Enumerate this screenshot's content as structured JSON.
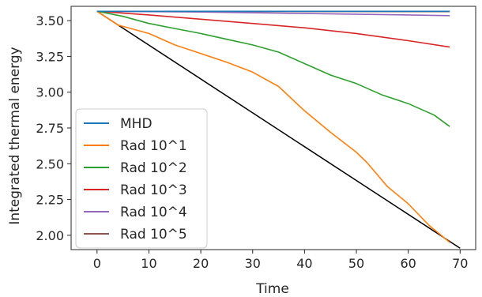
{
  "chart_data": {
    "type": "line",
    "xlabel": "Time",
    "ylabel": "Integrated thermal energy",
    "xlim": [
      -5,
      73
    ],
    "ylim": [
      1.9,
      3.6
    ],
    "x_ticks": [
      0,
      10,
      20,
      30,
      40,
      50,
      60,
      70
    ],
    "x_tick_labels": [
      "0",
      "10",
      "20",
      "30",
      "40",
      "50",
      "60",
      "70"
    ],
    "y_ticks": [
      2.0,
      2.25,
      2.5,
      2.75,
      3.0,
      3.25,
      3.5
    ],
    "y_tick_labels": [
      "2.00",
      "2.25",
      "2.50",
      "2.75",
      "3.00",
      "3.25",
      "3.50"
    ],
    "grid": false,
    "legend_position": "lower-left",
    "series": [
      {
        "name": "MHD",
        "color": "#1f77b4",
        "x": [
          0,
          68
        ],
        "y": [
          3.565,
          3.565
        ]
      },
      {
        "name": "Rad 10^1",
        "color": "#ff7f0e",
        "x": [
          0,
          4,
          10,
          15,
          20,
          25,
          30,
          35,
          40,
          45,
          50,
          52,
          56,
          60,
          64,
          68
        ],
        "y": [
          3.565,
          3.47,
          3.41,
          3.33,
          3.27,
          3.21,
          3.14,
          3.04,
          2.87,
          2.72,
          2.58,
          2.51,
          2.34,
          2.22,
          2.07,
          1.95
        ]
      },
      {
        "name": "Rad 10^2",
        "color": "#2ca02c",
        "x": [
          0,
          5,
          10,
          15,
          20,
          25,
          30,
          35,
          40,
          45,
          50,
          55,
          60,
          65,
          68
        ],
        "y": [
          3.565,
          3.53,
          3.48,
          3.445,
          3.41,
          3.37,
          3.33,
          3.28,
          3.2,
          3.12,
          3.06,
          2.98,
          2.92,
          2.84,
          2.76
        ]
      },
      {
        "name": "Rad 10^3",
        "color": "#d62728",
        "x": [
          0,
          10,
          20,
          30,
          40,
          50,
          60,
          68
        ],
        "y": [
          3.565,
          3.54,
          3.51,
          3.48,
          3.45,
          3.41,
          3.36,
          3.315
        ]
      },
      {
        "name": "Rad 10^4",
        "color": "#9467bd",
        "x": [
          0,
          20,
          40,
          60,
          68
        ],
        "y": [
          3.565,
          3.56,
          3.55,
          3.54,
          3.535
        ]
      },
      {
        "name": "Rad 10^5",
        "color": "#8c564b",
        "x": [
          0,
          68
        ],
        "y": [
          3.565,
          3.563
        ]
      }
    ],
    "reference_line": {
      "color": "#000000",
      "x": [
        0,
        70
      ],
      "y": [
        3.565,
        1.91
      ]
    }
  }
}
